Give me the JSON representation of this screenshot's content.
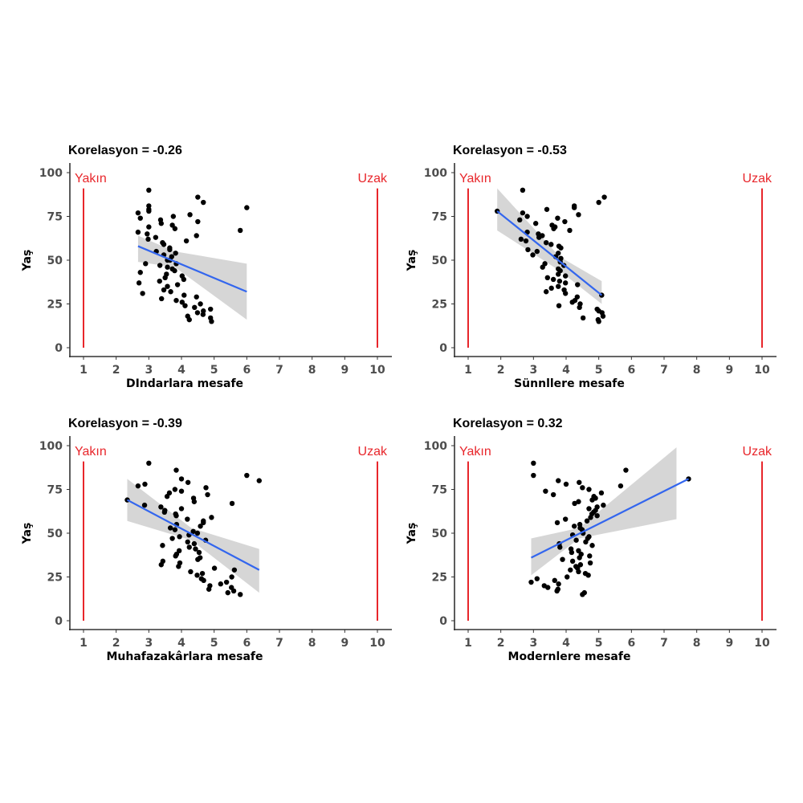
{
  "chart_data": [
    {
      "type": "scatter",
      "title": "Korelasyon = -0.26",
      "xlabel": "DIndarlara mesafe",
      "ylabel": "Yaş",
      "xlim": [
        1,
        10
      ],
      "ylim": [
        0,
        100
      ],
      "xticks": [
        "1",
        "2",
        "3",
        "4",
        "5",
        "6",
        "7",
        "8",
        "9",
        "10"
      ],
      "yticks": [
        "0",
        "25",
        "50",
        "75",
        "100"
      ],
      "annotations": {
        "left": "Yakın",
        "right": "Uzak",
        "ref_lines_x": [
          1,
          10
        ],
        "ref_line_top": 91,
        "color": "#e8262b"
      },
      "fit": {
        "x": [
          2.67,
          6.0
        ],
        "y": [
          58,
          32
        ],
        "color": "#3366ee"
      },
      "ci": {
        "x": [
          2.67,
          3.8,
          6.0
        ],
        "lower": [
          49,
          46,
          16
        ],
        "upper": [
          64,
          55,
          48
        ]
      },
      "points": [
        [
          3.0,
          90
        ],
        [
          4.5,
          86
        ],
        [
          4.67,
          83
        ],
        [
          6.0,
          80
        ],
        [
          3.0,
          81
        ],
        [
          3.0,
          79
        ],
        [
          3.0,
          78
        ],
        [
          2.67,
          77
        ],
        [
          2.74,
          74
        ],
        [
          3.75,
          75
        ],
        [
          4.26,
          76
        ],
        [
          4.5,
          72
        ],
        [
          3.36,
          73
        ],
        [
          3.38,
          71
        ],
        [
          3.72,
          70
        ],
        [
          3.8,
          68
        ],
        [
          3.0,
          69
        ],
        [
          5.8,
          67
        ],
        [
          2.67,
          66
        ],
        [
          2.95,
          65
        ],
        [
          4.46,
          64
        ],
        [
          3.21,
          63
        ],
        [
          2.98,
          62
        ],
        [
          4.15,
          61
        ],
        [
          3.42,
          60
        ],
        [
          3.46,
          59
        ],
        [
          3.64,
          57
        ],
        [
          3.64,
          56
        ],
        [
          3.23,
          55
        ],
        [
          3.82,
          54
        ],
        [
          3.46,
          53
        ],
        [
          3.7,
          52
        ],
        [
          3.57,
          50
        ],
        [
          3.65,
          50
        ],
        [
          3.84,
          48
        ],
        [
          2.9,
          48
        ],
        [
          3.34,
          47
        ],
        [
          3.57,
          46
        ],
        [
          3.72,
          45
        ],
        [
          3.79,
          44
        ],
        [
          2.74,
          43
        ],
        [
          4.02,
          41
        ],
        [
          4.07,
          39
        ],
        [
          3.54,
          42
        ],
        [
          3.5,
          40
        ],
        [
          2.7,
          37
        ],
        [
          3.33,
          38
        ],
        [
          3.88,
          36
        ],
        [
          3.57,
          35
        ],
        [
          3.46,
          33
        ],
        [
          3.67,
          32
        ],
        [
          2.81,
          31
        ],
        [
          4.08,
          30
        ],
        [
          4.46,
          29
        ],
        [
          3.39,
          28
        ],
        [
          3.84,
          27
        ],
        [
          4.02,
          26
        ],
        [
          4.11,
          24
        ],
        [
          4.58,
          25
        ],
        [
          4.4,
          23
        ],
        [
          4.67,
          21
        ],
        [
          4.49,
          20
        ],
        [
          4.66,
          19
        ],
        [
          4.89,
          22
        ],
        [
          4.19,
          18
        ],
        [
          4.24,
          16
        ],
        [
          4.89,
          17
        ],
        [
          4.92,
          15
        ]
      ]
    },
    {
      "type": "scatter",
      "title": "Korelasyon = -0.53",
      "xlabel": "Sünnllere mesafe",
      "ylabel": "Yaş",
      "xlim": [
        1,
        10
      ],
      "ylim": [
        0,
        100
      ],
      "xticks": [
        "1",
        "2",
        "3",
        "4",
        "5",
        "6",
        "7",
        "8",
        "9",
        "10"
      ],
      "yticks": [
        "0",
        "25",
        "50",
        "75",
        "100"
      ],
      "annotations": {
        "left": "Yakın",
        "right": "Uzak",
        "ref_lines_x": [
          1,
          10
        ],
        "ref_line_top": 91,
        "color": "#e8262b"
      },
      "fit": {
        "x": [
          1.89,
          5.09
        ],
        "y": [
          78,
          30
        ],
        "color": "#3366ee"
      },
      "ci": {
        "x": [
          1.89,
          3.8,
          5.09
        ],
        "lower": [
          67,
          44,
          25
        ],
        "upper": [
          91,
          52,
          38
        ]
      },
      "points": [
        [
          2.67,
          90
        ],
        [
          5.17,
          86
        ],
        [
          5.0,
          83
        ],
        [
          4.25,
          81
        ],
        [
          4.25,
          80
        ],
        [
          4.38,
          76
        ],
        [
          3.41,
          79
        ],
        [
          1.89,
          78
        ],
        [
          2.67,
          77
        ],
        [
          2.81,
          75
        ],
        [
          3.74,
          74
        ],
        [
          2.58,
          73
        ],
        [
          3.96,
          72
        ],
        [
          3.07,
          71
        ],
        [
          3.57,
          70
        ],
        [
          3.66,
          69
        ],
        [
          3.62,
          68
        ],
        [
          4.11,
          67
        ],
        [
          2.81,
          66
        ],
        [
          3.15,
          65
        ],
        [
          3.27,
          64
        ],
        [
          3.17,
          63
        ],
        [
          2.62,
          62
        ],
        [
          2.77,
          61
        ],
        [
          3.39,
          60
        ],
        [
          3.54,
          59
        ],
        [
          3.78,
          58
        ],
        [
          3.84,
          57
        ],
        [
          2.83,
          56
        ],
        [
          3.11,
          55
        ],
        [
          2.98,
          53
        ],
        [
          3.76,
          54
        ],
        [
          3.68,
          52
        ],
        [
          3.84,
          51
        ],
        [
          3.82,
          49
        ],
        [
          3.93,
          47
        ],
        [
          3.35,
          48
        ],
        [
          3.28,
          46
        ],
        [
          3.76,
          45
        ],
        [
          3.82,
          44
        ],
        [
          3.76,
          42
        ],
        [
          3.98,
          41
        ],
        [
          3.43,
          40
        ],
        [
          3.61,
          39
        ],
        [
          3.8,
          38
        ],
        [
          3.98,
          37
        ],
        [
          4.35,
          36
        ],
        [
          3.76,
          35
        ],
        [
          3.55,
          34
        ],
        [
          3.94,
          33
        ],
        [
          3.98,
          31
        ],
        [
          3.39,
          32
        ],
        [
          5.09,
          30
        ],
        [
          4.34,
          29
        ],
        [
          4.27,
          27
        ],
        [
          4.19,
          26
        ],
        [
          4.43,
          25
        ],
        [
          4.41,
          23
        ],
        [
          3.78,
          24
        ],
        [
          4.95,
          22
        ],
        [
          5.0,
          21
        ],
        [
          5.1,
          20
        ],
        [
          5.13,
          18
        ],
        [
          4.52,
          17
        ],
        [
          4.98,
          16
        ],
        [
          5.0,
          15
        ]
      ]
    },
    {
      "type": "scatter",
      "title": "Korelasyon = -0.39",
      "xlabel": "Muhafazakârlara mesafe",
      "ylabel": "Yaş",
      "xlim": [
        1,
        10
      ],
      "ylim": [
        0,
        100
      ],
      "xticks": [
        "1",
        "2",
        "3",
        "4",
        "5",
        "6",
        "7",
        "8",
        "9",
        "10"
      ],
      "yticks": [
        "0",
        "25",
        "50",
        "75",
        "100"
      ],
      "annotations": {
        "left": "Yakın",
        "right": "Uzak",
        "ref_lines_x": [
          1,
          10
        ],
        "ref_line_top": 91,
        "color": "#e8262b"
      },
      "fit": {
        "x": [
          2.34,
          6.38
        ],
        "y": [
          69,
          29
        ],
        "color": "#3366ee"
      },
      "ci": {
        "x": [
          2.34,
          4.3,
          6.38
        ],
        "lower": [
          57,
          46,
          16
        ],
        "upper": [
          81,
          53,
          41
        ]
      },
      "points": [
        [
          3.0,
          90
        ],
        [
          3.84,
          86
        ],
        [
          6.0,
          83
        ],
        [
          6.38,
          80
        ],
        [
          4.0,
          81
        ],
        [
          4.2,
          79
        ],
        [
          2.67,
          77
        ],
        [
          2.88,
          78
        ],
        [
          3.8,
          75
        ],
        [
          4.75,
          76
        ],
        [
          4.0,
          74
        ],
        [
          3.63,
          73
        ],
        [
          3.56,
          71
        ],
        [
          4.8,
          72
        ],
        [
          4.37,
          70
        ],
        [
          4.39,
          68
        ],
        [
          2.34,
          69
        ],
        [
          5.55,
          67
        ],
        [
          2.87,
          66
        ],
        [
          3.37,
          65
        ],
        [
          4.0,
          64
        ],
        [
          3.49,
          63
        ],
        [
          3.48,
          62
        ],
        [
          3.82,
          61
        ],
        [
          3.84,
          60
        ],
        [
          4.92,
          59
        ],
        [
          4.18,
          58
        ],
        [
          4.67,
          57
        ],
        [
          4.67,
          56
        ],
        [
          3.85,
          55
        ],
        [
          4.58,
          54
        ],
        [
          3.66,
          53
        ],
        [
          3.8,
          52
        ],
        [
          4.36,
          51
        ],
        [
          4.49,
          50
        ],
        [
          4.23,
          49
        ],
        [
          3.94,
          48
        ],
        [
          3.72,
          47
        ],
        [
          4.74,
          46
        ],
        [
          4.19,
          45
        ],
        [
          4.39,
          44
        ],
        [
          3.42,
          43
        ],
        [
          4.24,
          42
        ],
        [
          4.43,
          41
        ],
        [
          3.93,
          40
        ],
        [
          4.54,
          39
        ],
        [
          3.85,
          38
        ],
        [
          3.82,
          37
        ],
        [
          4.57,
          36
        ],
        [
          4.5,
          35
        ],
        [
          3.43,
          34
        ],
        [
          3.38,
          32
        ],
        [
          3.95,
          33
        ],
        [
          3.91,
          31
        ],
        [
          5.01,
          30
        ],
        [
          5.62,
          29
        ],
        [
          4.28,
          28
        ],
        [
          4.64,
          27
        ],
        [
          4.48,
          26
        ],
        [
          5.54,
          25
        ],
        [
          4.61,
          24
        ],
        [
          4.68,
          23
        ],
        [
          5.38,
          22
        ],
        [
          5.2,
          21
        ],
        [
          4.87,
          20
        ],
        [
          4.84,
          18
        ],
        [
          5.53,
          19
        ],
        [
          5.6,
          17
        ],
        [
          5.42,
          16
        ],
        [
          5.8,
          15
        ]
      ]
    },
    {
      "type": "scatter",
      "title": "Korelasyon = 0.32",
      "xlabel": "Modernlere mesafe",
      "ylabel": "Yaş",
      "xlim": [
        1,
        10
      ],
      "ylim": [
        0,
        100
      ],
      "xticks": [
        "1",
        "2",
        "3",
        "4",
        "5",
        "6",
        "7",
        "8",
        "9",
        "10"
      ],
      "yticks": [
        "0",
        "25",
        "50",
        "75",
        "100"
      ],
      "annotations": {
        "left": "Yakın",
        "right": "Uzak",
        "ref_lines_x": [
          1,
          10
        ],
        "ref_line_top": 91,
        "color": "#e8262b"
      },
      "fit": {
        "x": [
          2.93,
          7.75
        ],
        "y": [
          36,
          81
        ],
        "color": "#3366ee"
      },
      "ci": {
        "x": [
          2.93,
          4.4,
          7.38
        ],
        "lower": [
          26,
          47,
          58
        ],
        "upper": [
          47,
          53,
          99
        ]
      },
      "points": [
        [
          3.0,
          90
        ],
        [
          3.0,
          83
        ],
        [
          5.83,
          86
        ],
        [
          7.75,
          81
        ],
        [
          3.76,
          80
        ],
        [
          4.0,
          78
        ],
        [
          4.4,
          79
        ],
        [
          5.67,
          77
        ],
        [
          4.5,
          76
        ],
        [
          4.7,
          75
        ],
        [
          3.37,
          74
        ],
        [
          3.61,
          72
        ],
        [
          5.08,
          73
        ],
        [
          4.85,
          71
        ],
        [
          4.9,
          70
        ],
        [
          4.8,
          69
        ],
        [
          4.38,
          68
        ],
        [
          4.26,
          67
        ],
        [
          5.14,
          66
        ],
        [
          4.95,
          65
        ],
        [
          4.7,
          64
        ],
        [
          4.9,
          63
        ],
        [
          4.84,
          62
        ],
        [
          4.79,
          61
        ],
        [
          4.95,
          60
        ],
        [
          4.75,
          59
        ],
        [
          3.98,
          58
        ],
        [
          4.64,
          57
        ],
        [
          3.73,
          56
        ],
        [
          4.42,
          55
        ],
        [
          4.25,
          54
        ],
        [
          4.43,
          53
        ],
        [
          4.49,
          52
        ],
        [
          4.52,
          50
        ],
        [
          4.2,
          49
        ],
        [
          4.7,
          48
        ],
        [
          4.66,
          47
        ],
        [
          4.31,
          46
        ],
        [
          4.6,
          45
        ],
        [
          3.79,
          44
        ],
        [
          3.81,
          42
        ],
        [
          4.8,
          43
        ],
        [
          4.15,
          41
        ],
        [
          4.17,
          39
        ],
        [
          4.38,
          40
        ],
        [
          4.46,
          38
        ],
        [
          4.72,
          37
        ],
        [
          4.41,
          36
        ],
        [
          3.89,
          35
        ],
        [
          4.2,
          34
        ],
        [
          4.74,
          33
        ],
        [
          4.44,
          32
        ],
        [
          4.3,
          31
        ],
        [
          4.35,
          30
        ],
        [
          4.13,
          29
        ],
        [
          4.38,
          28
        ],
        [
          4.59,
          27
        ],
        [
          4.68,
          26
        ],
        [
          4.03,
          25
        ],
        [
          3.11,
          24
        ],
        [
          3.65,
          23
        ],
        [
          2.93,
          22
        ],
        [
          3.77,
          21
        ],
        [
          3.33,
          20
        ],
        [
          3.44,
          19
        ],
        [
          3.75,
          18
        ],
        [
          3.72,
          17
        ],
        [
          4.56,
          16
        ],
        [
          4.5,
          15
        ]
      ]
    }
  ]
}
